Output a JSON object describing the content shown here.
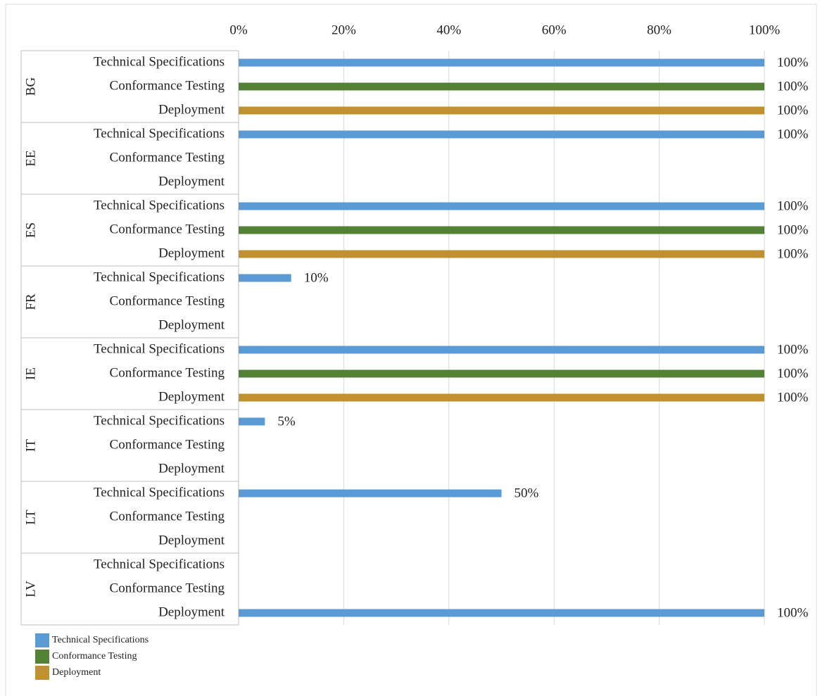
{
  "chart_data": {
    "type": "grouped-hbar",
    "groups": [
      "BG",
      "EE",
      "ES",
      "FR",
      "IE",
      "IT",
      "LT",
      "LV"
    ],
    "subcategories": [
      "Technical Specifications",
      "Conformance Testing",
      "Deployment"
    ],
    "series": [
      {
        "name": "Technical Specifications",
        "color": "#5b9bd5",
        "values": [
          100,
          100,
          100,
          10,
          100,
          5,
          50,
          null
        ],
        "value_labels": [
          "100%",
          "100%",
          "100%",
          "10%",
          "100%",
          "5%",
          "50%",
          null
        ]
      },
      {
        "name": "Conformance Testing",
        "color": "#548235",
        "values": [
          100,
          null,
          100,
          null,
          100,
          null,
          null,
          null
        ],
        "value_labels": [
          "100%",
          null,
          "100%",
          null,
          "100%",
          null,
          null,
          null
        ]
      },
      {
        "name": "Deployment",
        "color": "#bf9130",
        "colors": [
          null,
          null,
          null,
          null,
          null,
          null,
          null,
          "#5b9bd5"
        ],
        "values": [
          100,
          null,
          100,
          null,
          100,
          null,
          null,
          100
        ],
        "value_labels": [
          "100%",
          null,
          "100%",
          null,
          "100%",
          null,
          null,
          "100%"
        ]
      }
    ],
    "xlim": [
      0,
      100
    ],
    "xticks": [
      {
        "value": 0,
        "label": "0%"
      },
      {
        "value": 20,
        "label": "20%"
      },
      {
        "value": 40,
        "label": "40%"
      },
      {
        "value": 60,
        "label": "60%"
      },
      {
        "value": 80,
        "label": "80%"
      },
      {
        "value": 100,
        "label": "100%"
      }
    ],
    "grid": true
  }
}
